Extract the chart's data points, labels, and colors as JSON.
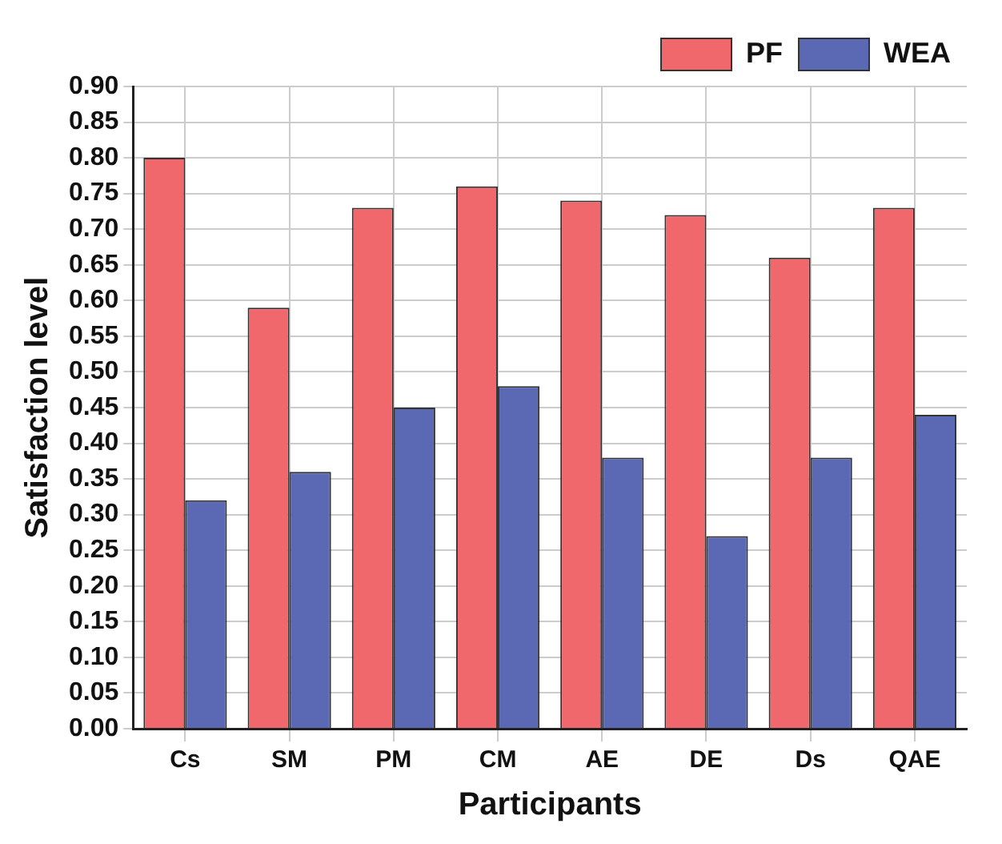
{
  "chart_data": {
    "type": "bar",
    "xlabel": "Participants",
    "ylabel": "Satisfaction level",
    "categories": [
      "Cs",
      "SM",
      "PM",
      "CM",
      "AE",
      "DE",
      "Ds",
      "QAE"
    ],
    "series": [
      {
        "name": "PF",
        "color": "#f0686c",
        "values": [
          0.8,
          0.59,
          0.73,
          0.76,
          0.74,
          0.72,
          0.66,
          0.73
        ]
      },
      {
        "name": "WEA",
        "color": "#5b68b3",
        "values": [
          0.32,
          0.36,
          0.45,
          0.48,
          0.38,
          0.27,
          0.38,
          0.44
        ]
      }
    ],
    "ylim": [
      0,
      0.9
    ],
    "yticks": [
      {
        "value": 0,
        "label": "0.00"
      },
      {
        "value": 0.05,
        "label": "0.05"
      },
      {
        "value": 0.1,
        "label": "0.10"
      },
      {
        "value": 0.15,
        "label": "0.15"
      },
      {
        "value": 0.2,
        "label": "0.20"
      },
      {
        "value": 0.25,
        "label": "0.25"
      },
      {
        "value": 0.3,
        "label": "0.30"
      },
      {
        "value": 0.35,
        "label": "0.35"
      },
      {
        "value": 0.4,
        "label": "0.40"
      },
      {
        "value": 0.45,
        "label": "0.45"
      },
      {
        "value": 0.5,
        "label": "0.50"
      },
      {
        "value": 0.55,
        "label": "0.55"
      },
      {
        "value": 0.6,
        "label": "0.60"
      },
      {
        "value": 0.65,
        "label": "0.65"
      },
      {
        "value": 0.7,
        "label": "0.70"
      },
      {
        "value": 0.75,
        "label": "0.75"
      },
      {
        "value": 0.8,
        "label": "0.80"
      },
      {
        "value": 0.85,
        "label": "0.85"
      },
      {
        "value": 0.9,
        "label": "0.90"
      }
    ],
    "grid": true,
    "legend": "top right"
  }
}
